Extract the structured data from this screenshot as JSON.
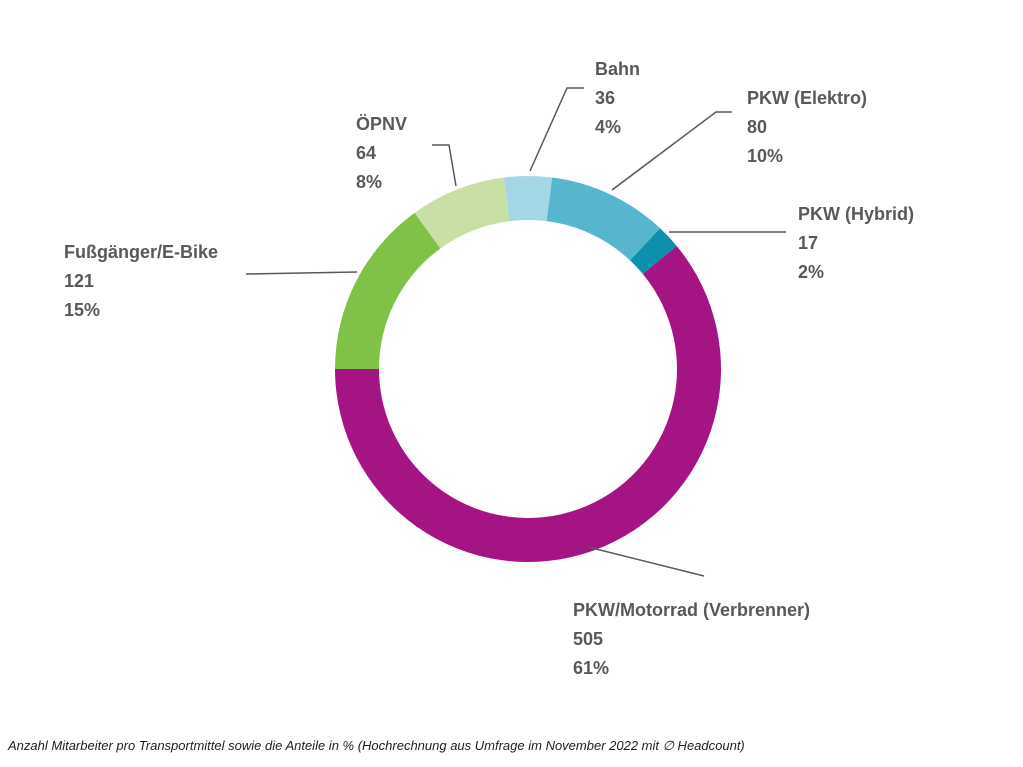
{
  "caption": "Anzahl Mitarbeiter pro Transportmittel sowie die Anteile in % (Hochrechnung aus Umfrage im November 2022 mit ∅ Headcount)",
  "colors": {
    "label_text": "#595959",
    "leader_line": "#595959",
    "background": "#ffffff"
  },
  "chart_data": {
    "type": "pie",
    "subtype": "donut",
    "title": "",
    "legend": "none",
    "start_angle_deg": -7.2,
    "direction": "clockwise",
    "segments": [
      {
        "id": "bahn",
        "label": "Bahn",
        "value": "36",
        "pct": "4%",
        "share": 4,
        "color": "#a4d7e5"
      },
      {
        "id": "pkw-elektro",
        "label": "PKW (Elektro)",
        "value": "80",
        "pct": "10%",
        "share": 10,
        "color": "#57b5ce"
      },
      {
        "id": "pkw-hybrid",
        "label": "PKW (Hybrid)",
        "value": "17",
        "pct": "2%",
        "share": 2,
        "color": "#0d90ae"
      },
      {
        "id": "pkw-verbrenner",
        "label": "PKW/Motorrad (Verbrenner)",
        "value": "505",
        "pct": "61%",
        "share": 61,
        "color": "#a51483"
      },
      {
        "id": "fussgaenger-ebike",
        "label": "Fußgänger/E-Bike",
        "value": "121",
        "pct": "15%",
        "share": 15,
        "color": "#80c248"
      },
      {
        "id": "oepnv",
        "label": "ÖPNV",
        "value": "64",
        "pct": "8%",
        "share": 8,
        "color": "#c8e0a6"
      }
    ]
  }
}
